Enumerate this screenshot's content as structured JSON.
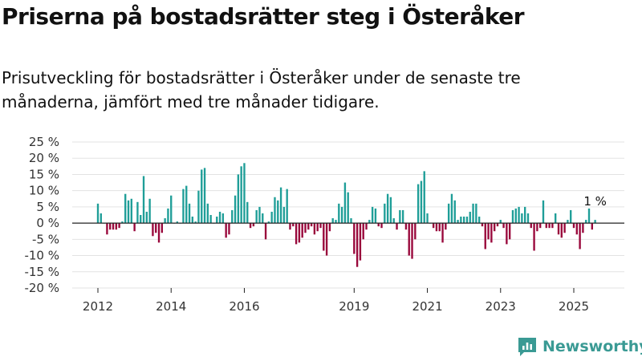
{
  "title": "Priserna på bostadsrätter steg i Österåker",
  "subtitle": "Prisutveckling för bostadsrätter i Österåker under de senaste tre månaderna, jämfört med tre månader tidigare.",
  "brand": {
    "name": "Newsworthy"
  },
  "colors": {
    "positive": "#1f9e98",
    "negative": "#99073b",
    "grid": "#e3e3e3",
    "axis": "#222222",
    "text": "#333333",
    "brand": "#3a9a94"
  },
  "chart_data": {
    "type": "bar",
    "title": "",
    "xlabel": "",
    "ylabel": "",
    "ylim": [
      -20,
      25
    ],
    "yticks": [
      25,
      20,
      15,
      10,
      5,
      0,
      -5,
      -10,
      -15,
      -20
    ],
    "ytick_labels": [
      "25 %",
      "20 %",
      "15 %",
      "10 %",
      "5 %",
      "0 %",
      "-5 %",
      "-10 %",
      "-15 %",
      "-20 %"
    ],
    "xtick_labels": [
      "2012",
      "2014",
      "2016",
      "2019",
      "2021",
      "2023",
      "2025"
    ],
    "grid": "horizontal",
    "last_value_label": "1 %",
    "series": [
      {
        "start": "2012-01",
        "values": [
          6,
          3,
          0,
          -3.5,
          -2,
          -2,
          -2,
          -1.5,
          0.5,
          9,
          7,
          7.5,
          -2.5,
          6.5,
          2.5,
          14.5,
          3.5,
          7.5,
          -4,
          -3,
          -6,
          -3,
          1.5,
          4.5,
          8.5,
          0,
          0.5,
          0,
          10.5,
          11.5,
          6,
          2,
          0.5,
          10,
          16.5,
          17,
          6,
          2.5,
          0,
          2,
          3.5,
          3,
          -4.5,
          -3.5,
          4,
          8.5,
          15,
          17.5,
          18.5,
          6.5,
          -1.5,
          -1,
          4,
          5,
          3,
          -5,
          0.5,
          3.5,
          8,
          7,
          11,
          5,
          10.5,
          -2,
          -1,
          -6.5,
          -6,
          -4.5,
          -3,
          -2,
          -1,
          -3.5,
          -2.5,
          -1.5,
          -8.5,
          -10,
          -2.5,
          1.5,
          1,
          6,
          5,
          12.5,
          9.5,
          1.5,
          -9.5,
          -13.5,
          -11.5,
          -5,
          -2,
          1,
          5,
          4.5,
          -1,
          -1.5,
          6,
          9,
          8,
          1.5,
          -2,
          4,
          4,
          -2,
          -10,
          -11,
          -5,
          12,
          13,
          16,
          3,
          0,
          -1.5,
          -2.5,
          -2.5,
          -6,
          -2,
          6,
          9,
          7,
          1,
          2,
          2,
          2,
          3.5,
          6,
          6,
          2,
          -1,
          -8,
          -5,
          -6,
          -2.5,
          -1,
          1,
          -1.5,
          -6.5,
          -5,
          4,
          4.5,
          5,
          3,
          5,
          3,
          -1.5,
          -8.5,
          -2.5,
          -1.5,
          7,
          -1.5,
          -1.5,
          -1.5,
          3,
          -3.5,
          -4.5,
          -3,
          1,
          4,
          -1.5,
          -3.5,
          -8,
          -3,
          1,
          4.5,
          -2,
          1
        ]
      }
    ]
  }
}
